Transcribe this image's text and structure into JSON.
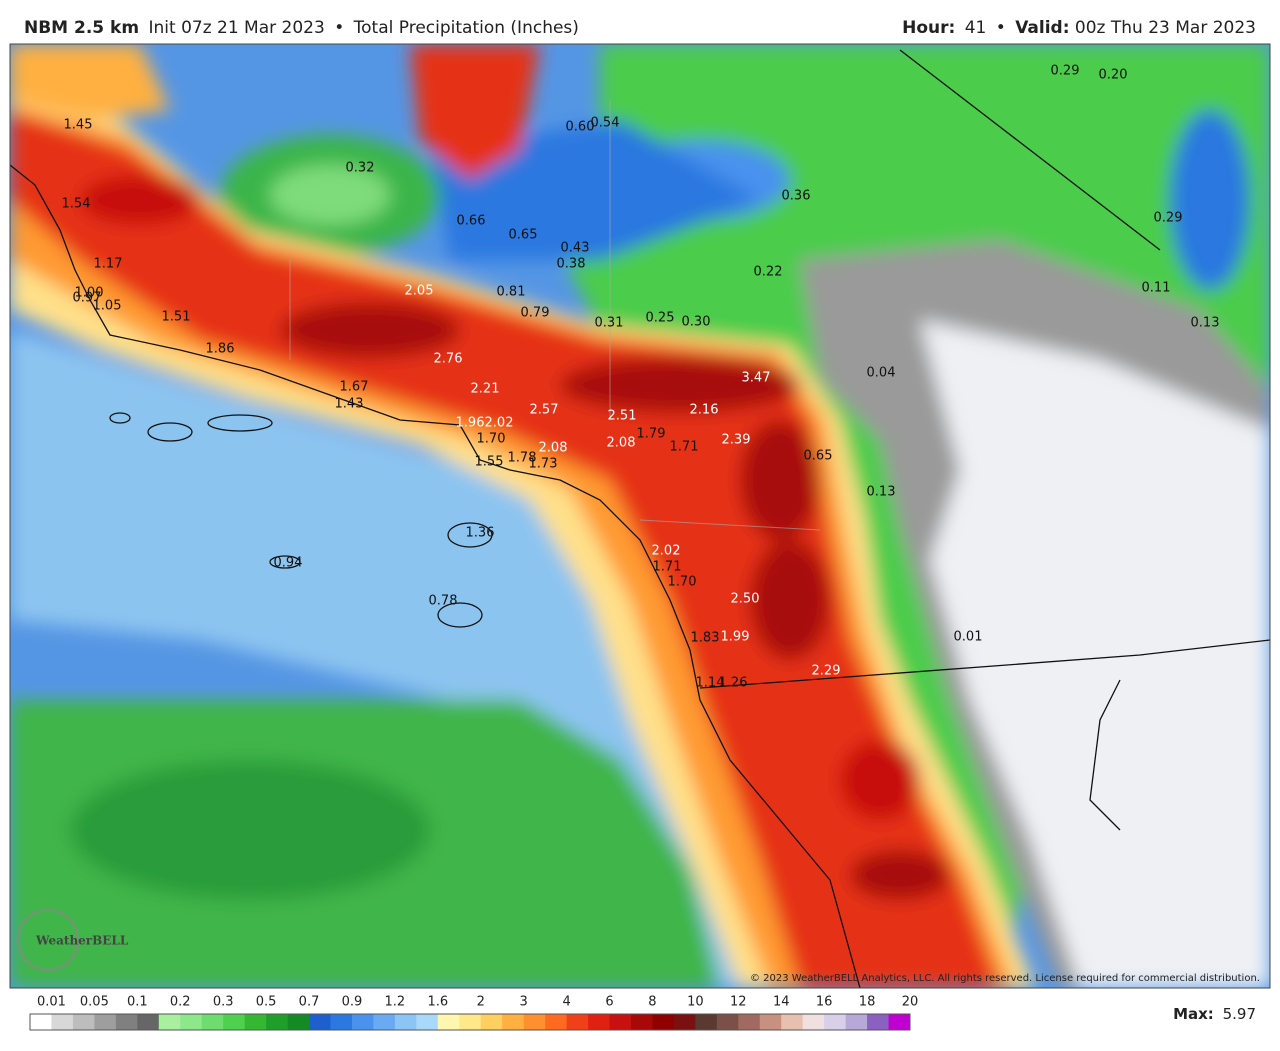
{
  "header": {
    "model": "NBM 2.5 km",
    "init": "Init 07z 21 Mar 2023",
    "separator": "•",
    "product": "Total Precipitation (Inches)",
    "hour_label": "Hour:",
    "hour": "41",
    "valid_label": "Valid:",
    "valid": "00z Thu 23 Mar 2023"
  },
  "map": {
    "labels": [
      "0.29",
      "0.20",
      "1.45",
      "0.60",
      "0.54",
      "0.32",
      "0.36",
      "1.54",
      "0.29",
      "0.66",
      "0.65",
      "0.43",
      "0.38",
      "1.17",
      "0.22",
      "2.05",
      "0.81",
      "0.11",
      "1.00",
      "0.97",
      "1.05",
      "1.51",
      "0.79",
      "0.31",
      "0.25",
      "0.30",
      "0.13",
      "1.86",
      "2.76",
      "3.47",
      "0.04",
      "1.67",
      "2.21",
      "1.43",
      "2.57",
      "2.51",
      "2.16",
      "1.96",
      "2.02",
      "1.70",
      "1.79",
      "1.71",
      "2.39",
      "2.08",
      "2.08",
      "0.65",
      "1.55",
      "1.78",
      "1.73",
      "0.13",
      "1.36",
      "0.94",
      "2.02",
      "1.71",
      "1.70",
      "2.50",
      "0.78",
      "1.83",
      "1.99",
      "0.01",
      "2.29",
      "1.14",
      "1.26"
    ],
    "copyright": "© 2023 WeatherBELL Analytics, LLC. All rights reserved. License required for commercial distribution.",
    "logo": "WeatherBELL"
  },
  "legend": {
    "labels": [
      "0.01",
      "0.05",
      "0.1",
      "0.2",
      "0.3",
      "0.5",
      "0.7",
      "0.9",
      "1.2",
      "1.6",
      "2",
      "3",
      "4",
      "6",
      "8",
      "10",
      "12",
      "14",
      "16",
      "18",
      "20"
    ],
    "colors": [
      "#ffffff",
      "#d8d8d8",
      "#bdbdbd",
      "#9e9e9e",
      "#808080",
      "#666666",
      "#a8f0a0",
      "#8ce88a",
      "#6edc6e",
      "#4fd04f",
      "#34b834",
      "#1f9e2a",
      "#138a24",
      "#1e5fd0",
      "#2a78e0",
      "#4a92ee",
      "#6aaaf2",
      "#8cc4f6",
      "#aad8f8",
      "#fff7b0",
      "#ffe88a",
      "#ffd060",
      "#ffb040",
      "#ff9030",
      "#ff6a20",
      "#f04018",
      "#e02010",
      "#c81010",
      "#a80808",
      "#900000",
      "#7a1010",
      "#5a3a30",
      "#7a5048",
      "#a06a60",
      "#c89080",
      "#e8c0b0",
      "#f0e0e0",
      "#d8d0e8",
      "#b8a8d8",
      "#8a60c0",
      "#c000d0"
    ],
    "max_label": "Max:",
    "max": "5.97"
  }
}
